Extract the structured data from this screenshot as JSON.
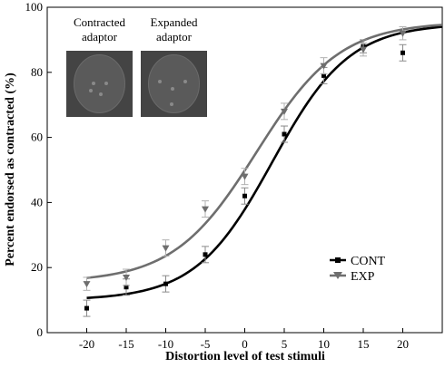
{
  "chart_data": {
    "type": "scatter",
    "title": "",
    "xlabel": "Distortion level of test stimuli",
    "ylabel": "Percent endorsed as contracted (%)",
    "xlim": [
      -25,
      25
    ],
    "ylim": [
      0,
      100
    ],
    "x_ticks": [
      -20,
      -15,
      -10,
      -5,
      0,
      5,
      10,
      15,
      20
    ],
    "y_ticks": [
      0,
      20,
      40,
      60,
      80,
      100
    ],
    "grid": false,
    "legend": "lower-right",
    "series": [
      {
        "name": "CONT",
        "marker": "square",
        "color": "#000000",
        "x": [
          -20,
          -15,
          -10,
          -5,
          0,
          5,
          10,
          15,
          20
        ],
        "y": [
          7.5,
          14,
          15,
          24,
          42,
          61,
          79,
          88,
          86
        ],
        "err": [
          2.5,
          2.5,
          2.5,
          2.5,
          2.5,
          2.5,
          2.5,
          2,
          2.5
        ],
        "fit": {
          "min": 10,
          "max": 95,
          "mid": 3.5,
          "slope": 0.205
        }
      },
      {
        "name": "EXP",
        "marker": "triangle-down",
        "color": "#6e6e6e",
        "x": [
          -20,
          -15,
          -10,
          -5,
          0,
          5,
          10,
          15,
          20
        ],
        "y": [
          15,
          17,
          26,
          38,
          48,
          68,
          82,
          87,
          92
        ],
        "err": [
          2,
          2.5,
          2.5,
          2.5,
          2.5,
          2.5,
          2.5,
          2,
          2
        ],
        "fit": {
          "min": 15.5,
          "max": 95.5,
          "mid": 1.5,
          "slope": 0.19
        }
      }
    ],
    "inset": {
      "labels": [
        "Contracted\nadaptor",
        "Expanded\nadaptor"
      ]
    }
  }
}
